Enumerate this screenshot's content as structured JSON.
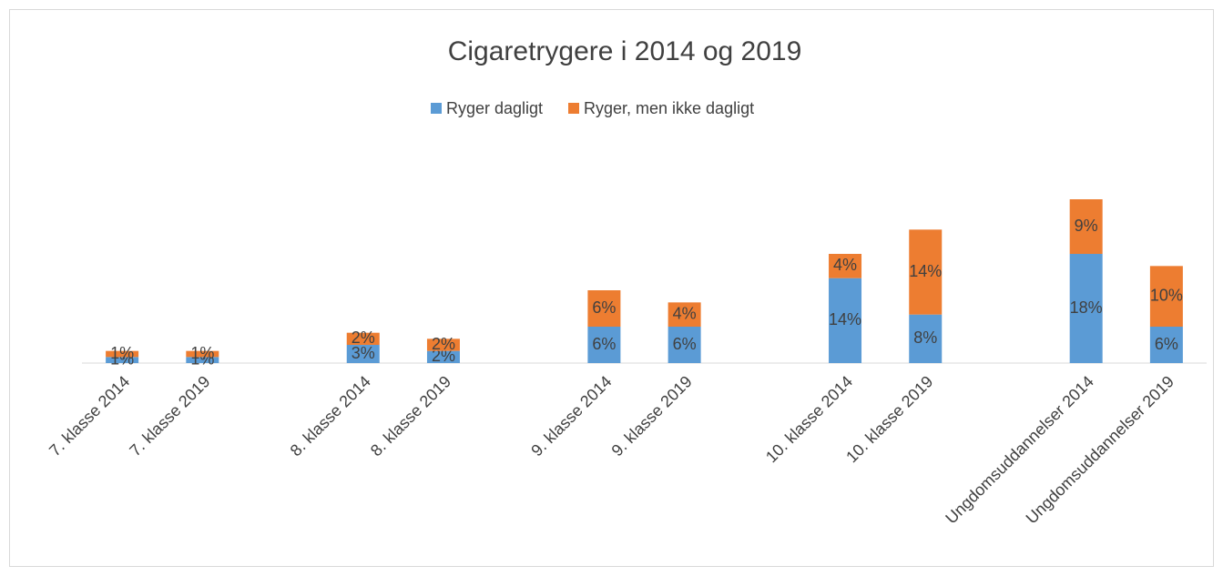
{
  "chart_data": {
    "type": "stacked_bar",
    "title": "Cigaretrygere i 2014 og 2019",
    "categories": [
      "7. klasse 2014",
      "7. klasse 2019",
      null,
      "8. klasse 2014",
      "8. klasse 2019",
      null,
      "9. klasse 2014",
      "9. klasse 2019",
      null,
      "10. klasse 2014",
      "10. klasse 2019",
      null,
      "Ungdomsuddannelser 2014",
      "Ungdomsuddannelser 2019"
    ],
    "series": [
      {
        "name": "Ryger dagligt",
        "color": "#5b9bd5",
        "values": [
          1,
          1,
          null,
          3,
          2,
          null,
          6,
          6,
          null,
          14,
          8,
          null,
          18,
          6
        ],
        "value_labels": [
          "1%",
          "1%",
          null,
          "3%",
          "2%",
          null,
          "6%",
          "6%",
          null,
          "14%",
          "8%",
          null,
          "18%",
          "6%"
        ]
      },
      {
        "name": "Ryger, men ikke dagligt",
        "color": "#ed7d31",
        "values": [
          1,
          1,
          null,
          2,
          2,
          null,
          6,
          4,
          null,
          4,
          14,
          null,
          9,
          10
        ],
        "value_labels": [
          "1%",
          "1%",
          null,
          "2%",
          "2%",
          null,
          "6%",
          "4%",
          null,
          "4%",
          "14%",
          null,
          "9%",
          "10%"
        ]
      }
    ],
    "ylim": [
      0,
      30
    ],
    "legend": "top"
  }
}
